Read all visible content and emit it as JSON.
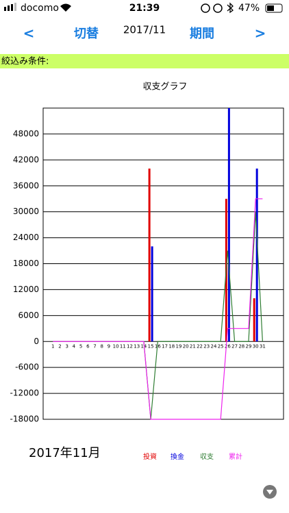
{
  "status_bar": {
    "carrier": "docomo",
    "time": "21:39",
    "battery": "47%"
  },
  "nav": {
    "prev": "<",
    "switch": "切替",
    "period_label": "2017/11",
    "period": "期間",
    "next": ">"
  },
  "filter": {
    "label": "絞込み条件:"
  },
  "month_label": "2017年11月",
  "chart_data": {
    "type": "bar",
    "title": "収支グラフ",
    "x": [
      1,
      2,
      3,
      4,
      5,
      6,
      7,
      8,
      9,
      10,
      11,
      12,
      13,
      14,
      15,
      16,
      17,
      18,
      19,
      20,
      21,
      22,
      23,
      24,
      25,
      26,
      27,
      28,
      29,
      30,
      31
    ],
    "xlim": [
      -0.4,
      34
    ],
    "ylim": [
      -18000,
      54000
    ],
    "yticks": [
      -18000,
      -12000,
      -6000,
      0,
      6000,
      12000,
      18000,
      24000,
      30000,
      36000,
      42000,
      48000
    ],
    "grid": true,
    "legend": "bottom",
    "series": [
      {
        "name": "投資",
        "type": "bar",
        "color": "#e00000",
        "values": [
          0,
          0,
          0,
          0,
          0,
          0,
          0,
          0,
          0,
          0,
          0,
          0,
          0,
          0,
          40000,
          0,
          0,
          0,
          0,
          0,
          0,
          0,
          0,
          0,
          0,
          33000,
          0,
          0,
          0,
          10000,
          0
        ]
      },
      {
        "name": "換金",
        "type": "bar",
        "color": "#0000dd",
        "values": [
          0,
          0,
          0,
          0,
          0,
          0,
          0,
          0,
          0,
          0,
          0,
          0,
          0,
          0,
          22000,
          0,
          0,
          0,
          0,
          0,
          0,
          0,
          0,
          0,
          0,
          54000,
          0,
          0,
          0,
          40000,
          0
        ]
      },
      {
        "name": "収支",
        "type": "line",
        "color": "#2e7d32",
        "values": [
          0,
          0,
          0,
          0,
          0,
          0,
          0,
          0,
          0,
          0,
          0,
          0,
          0,
          0,
          -18000,
          0,
          0,
          0,
          0,
          0,
          0,
          0,
          0,
          0,
          0,
          21000,
          0,
          0,
          0,
          30000,
          0
        ]
      },
      {
        "name": "累計",
        "type": "line",
        "color": "#ee22ee",
        "values": [
          0,
          0,
          0,
          0,
          0,
          0,
          0,
          0,
          0,
          0,
          0,
          0,
          0,
          0,
          -18000,
          -18000,
          -18000,
          -18000,
          -18000,
          -18000,
          -18000,
          -18000,
          -18000,
          -18000,
          -18000,
          3000,
          3000,
          3000,
          3000,
          33000,
          33000
        ]
      }
    ]
  }
}
